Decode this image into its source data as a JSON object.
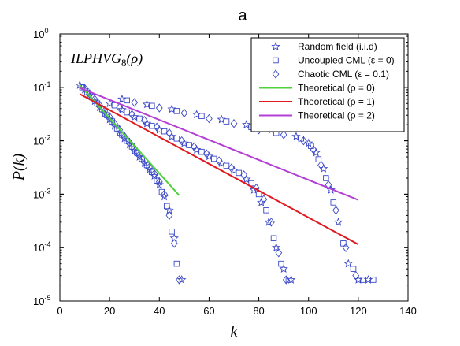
{
  "chart_data": {
    "type": "scatter",
    "title": "a",
    "annotation": {
      "main": "ILPHVG",
      "sub": "8",
      "tail": "(ρ)"
    },
    "xlabel": "k",
    "ylabel": "P(k)",
    "xlim": [
      0,
      140
    ],
    "ylim": [
      1e-05,
      1
    ],
    "yscale": "log",
    "grid": false,
    "legend_position": "top-right",
    "x_ticks": [
      0,
      20,
      40,
      60,
      80,
      100,
      120,
      140
    ],
    "x_tick_labels": [
      "0",
      "20",
      "40",
      "60",
      "80",
      "100",
      "120",
      "140"
    ],
    "y_ticks": [
      1e-05,
      0.0001,
      0.001,
      0.01,
      0.1,
      1
    ],
    "y_tick_labels": [
      {
        "base": "10",
        "exp": "-5"
      },
      {
        "base": "10",
        "exp": "-4"
      },
      {
        "base": "10",
        "exp": "-3"
      },
      {
        "base": "10",
        "exp": "-2"
      },
      {
        "base": "10",
        "exp": "-1"
      },
      {
        "base": "10",
        "exp": "0"
      }
    ],
    "series": [
      {
        "name": "Random field (i.i.d)",
        "marker": "star",
        "color": "#3b49c8",
        "x": [
          8,
          10,
          12,
          14,
          16,
          18,
          20,
          22,
          24,
          26,
          28,
          30,
          32,
          34,
          36,
          38,
          40,
          42,
          44,
          46,
          49,
          20,
          25,
          30,
          35,
          40,
          45,
          50,
          55,
          60,
          65,
          70,
          75,
          78,
          81,
          84,
          87,
          90,
          93,
          25,
          35,
          45,
          55,
          65,
          75,
          85,
          95,
          100,
          103,
          106,
          109,
          112,
          116,
          120,
          124
        ],
        "y": [
          0.11,
          0.09,
          0.07,
          0.055,
          0.042,
          0.032,
          0.025,
          0.019,
          0.014,
          0.011,
          0.0085,
          0.0065,
          0.005,
          0.0038,
          0.0029,
          0.0022,
          0.0015,
          0.0009,
          0.0005,
          0.00015,
          2.5e-05,
          0.05,
          0.038,
          0.028,
          0.021,
          0.016,
          0.012,
          0.009,
          0.0068,
          0.0051,
          0.0038,
          0.0028,
          0.0019,
          0.0012,
          0.0007,
          0.0003,
          0.0001,
          4e-05,
          2.5e-05,
          0.06,
          0.048,
          0.039,
          0.031,
          0.025,
          0.02,
          0.016,
          0.012,
          0.009,
          0.006,
          0.003,
          0.0012,
          0.0003,
          5e-05,
          2.5e-05,
          2.5e-05
        ]
      },
      {
        "name": "Uncoupled CML (ε = 0)",
        "marker": "square",
        "color": "#3b49c8",
        "x": [
          9,
          11,
          13,
          15,
          17,
          19,
          21,
          23,
          25,
          27,
          29,
          31,
          33,
          35,
          37,
          39,
          41,
          43,
          45,
          47,
          22,
          27,
          32,
          37,
          42,
          47,
          52,
          57,
          62,
          67,
          72,
          77,
          80,
          83,
          86,
          89,
          92,
          27,
          37,
          47,
          57,
          67,
          77,
          87,
          97,
          101,
          104,
          107,
          110,
          114,
          118,
          122,
          126
        ],
        "y": [
          0.1,
          0.08,
          0.065,
          0.05,
          0.039,
          0.03,
          0.023,
          0.017,
          0.013,
          0.01,
          0.0078,
          0.006,
          0.0046,
          0.0035,
          0.0026,
          0.0018,
          0.0011,
          0.0006,
          0.0002,
          5e-05,
          0.046,
          0.034,
          0.026,
          0.019,
          0.015,
          0.011,
          0.0083,
          0.0062,
          0.0046,
          0.0034,
          0.0025,
          0.0016,
          0.001,
          0.0005,
          0.00015,
          5e-05,
          2.5e-05,
          0.057,
          0.045,
          0.036,
          0.029,
          0.023,
          0.018,
          0.014,
          0.011,
          0.008,
          0.0045,
          0.002,
          0.0007,
          0.00012,
          4e-05,
          2.5e-05,
          2.5e-05
        ]
      },
      {
        "name": "Chaotic CML (ε = 0.1)",
        "marker": "diamond",
        "color": "#3b49c8",
        "x": [
          10,
          12,
          14,
          16,
          18,
          20,
          22,
          24,
          26,
          28,
          30,
          32,
          34,
          36,
          38,
          40,
          42,
          44,
          46,
          48,
          24,
          29,
          34,
          39,
          44,
          49,
          54,
          59,
          64,
          69,
          74,
          79,
          82,
          85,
          88,
          91,
          30,
          40,
          50,
          60,
          70,
          80,
          90,
          98,
          102,
          105,
          108,
          111,
          115,
          119
        ],
        "y": [
          0.095,
          0.075,
          0.06,
          0.046,
          0.036,
          0.028,
          0.021,
          0.016,
          0.012,
          0.0093,
          0.0072,
          0.0055,
          0.0042,
          0.0032,
          0.0024,
          0.0017,
          0.001,
          0.0004,
          0.00012,
          2.5e-05,
          0.042,
          0.031,
          0.024,
          0.018,
          0.014,
          0.01,
          0.0077,
          0.0057,
          0.0042,
          0.0031,
          0.0023,
          0.0013,
          0.0008,
          0.0003,
          8e-05,
          2.5e-05,
          0.052,
          0.041,
          0.033,
          0.026,
          0.021,
          0.016,
          0.013,
          0.01,
          0.0068,
          0.0035,
          0.0015,
          0.0005,
          0.0001,
          3e-05
        ]
      },
      {
        "name": "Theoretical (ρ = 0)",
        "marker": "line",
        "color": "#4ed23a",
        "x": [
          8,
          48
        ],
        "y": [
          0.11,
          0.00095
        ]
      },
      {
        "name": "Theoretical (ρ = 1)",
        "marker": "line",
        "color": "#e0181f",
        "x": [
          8,
          120
        ],
        "y": [
          0.075,
          0.000115
        ]
      },
      {
        "name": "Theoretical (ρ = 2)",
        "marker": "line",
        "color": "#b33fd4",
        "x": [
          8,
          120
        ],
        "y": [
          0.098,
          0.00078
        ]
      }
    ]
  }
}
